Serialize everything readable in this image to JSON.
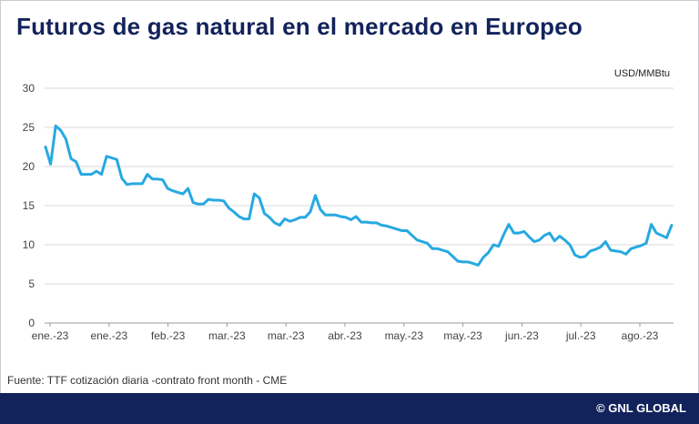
{
  "header": {
    "title": "Futuros de gas natural en el mercado en Europeo"
  },
  "footer": {
    "source": "Fuente: TTF cotización diaria -contrato front month - CME",
    "copyright": "© GNL GLOBAL"
  },
  "colors": {
    "line": "#27a9e1",
    "title": "#13235b",
    "footer_bg": "#12235c",
    "grid": "#d9d9d9"
  },
  "chart_data": {
    "type": "line",
    "title": "Futuros de gas natural en el mercado en Europeo",
    "ylabel": "USD/MMBtu",
    "xlabel": "",
    "ylim": [
      0,
      30
    ],
    "yticks": [
      0,
      5,
      10,
      15,
      20,
      25,
      30
    ],
    "xticks": [
      "ene.-23",
      "ene.-23",
      "feb.-23",
      "mar.-23",
      "mar.-23",
      "abr.-23",
      "may.-23",
      "may.-23",
      "jun.-23",
      "jul.-23",
      "ago.-23"
    ],
    "grid": true,
    "legend": "none",
    "series": [
      {
        "values": [
          22.5,
          20.3,
          25.2,
          24.6,
          23.5,
          21.0,
          20.6,
          19.0,
          19.0,
          19.0,
          19.4,
          19.0,
          21.3,
          21.1,
          20.9,
          18.5,
          17.7,
          17.8,
          17.8,
          17.8,
          19.0,
          18.4,
          18.4,
          18.3,
          17.2,
          16.9,
          16.7,
          16.5,
          17.2,
          15.4,
          15.2,
          15.2,
          15.8,
          15.7,
          15.7,
          15.6,
          14.7,
          14.2,
          13.6,
          13.3,
          13.3,
          16.5,
          16.0,
          14.0,
          13.5,
          12.8,
          12.5,
          13.3,
          13.0,
          13.2,
          13.5,
          13.5,
          14.2,
          16.3,
          14.5,
          13.8,
          13.8,
          13.8,
          13.6,
          13.5,
          13.2,
          13.6,
          12.9,
          12.9,
          12.8,
          12.8,
          12.5,
          12.4,
          12.2,
          12.0,
          11.8,
          11.8,
          11.2,
          10.6,
          10.4,
          10.2,
          9.5,
          9.5,
          9.3,
          9.1,
          8.5,
          7.9,
          7.8,
          7.8,
          7.6,
          7.4,
          8.4,
          9.0,
          10.0,
          9.8,
          11.3,
          12.6,
          11.5,
          11.5,
          11.7,
          11.0,
          10.4,
          10.6,
          11.2,
          11.5,
          10.5,
          11.1,
          10.6,
          10.0,
          8.7,
          8.4,
          8.5,
          9.2,
          9.4,
          9.7,
          10.4,
          9.3,
          9.2,
          9.1,
          8.8,
          9.5,
          9.7,
          9.9,
          10.2,
          12.6,
          11.5,
          11.2,
          10.9,
          12.5
        ]
      }
    ]
  }
}
